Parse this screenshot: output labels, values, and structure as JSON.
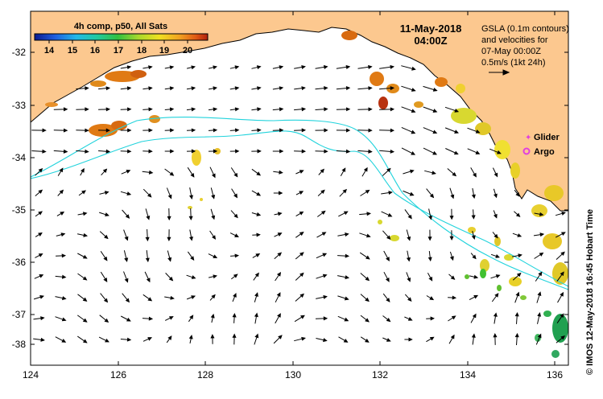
{
  "header": {
    "date": "11-May-2018",
    "time": "04:00Z"
  },
  "colorbar": {
    "title": "4h comp, p50, All Sats",
    "ticks": [
      "14",
      "15",
      "16",
      "17",
      "18",
      "19",
      "20"
    ],
    "min": 13.5,
    "max": 21
  },
  "legend": {
    "gsla_lines": [
      "GSLA (0.1m contours)",
      "and velocities for",
      "07-May 00:00Z",
      "0.5m/s (1kt 24h)"
    ],
    "glider_label": "Glider",
    "argo_label": "Argo",
    "glider_color": "#e040e0",
    "argo_color": "#e040e0"
  },
  "attribution": "© IMOS 12-May-2018 16:45 Hobart Time",
  "axes": {
    "x_ticks": [
      "124",
      "126",
      "128",
      "130",
      "132",
      "134",
      "136"
    ],
    "y_ticks": [
      "-32",
      "-33",
      "-34",
      "-35",
      "-36",
      "-37",
      "-38"
    ],
    "lon_range": [
      124,
      136.3
    ],
    "lat_range": [
      -31.3,
      -38.2
    ]
  },
  "colors": {
    "land": "#fcc88f",
    "contour": "#22d3dc",
    "frame": "#000000"
  }
}
